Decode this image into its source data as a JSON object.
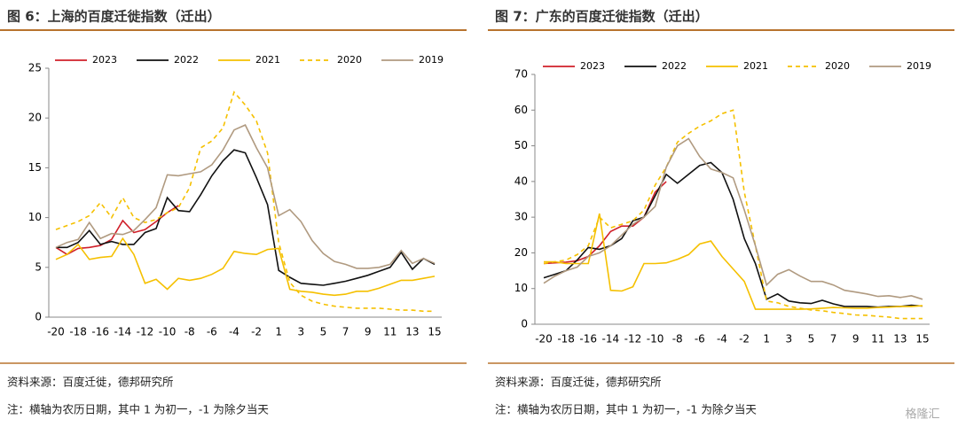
{
  "watermark": "格隆汇",
  "chart_data": [
    {
      "type": "line",
      "title": "图 6：上海的百度迁徙指数（迁出）",
      "source": "资料来源：百度迁徙，德邦研究所",
      "note": "注：横轴为农历日期，其中 1 为初一，-1 为除夕当天",
      "categories": [
        -20,
        null,
        -18,
        null,
        -16,
        null,
        -14,
        null,
        -12,
        null,
        -10,
        null,
        -8,
        null,
        -6,
        null,
        -4,
        null,
        -2,
        null,
        1,
        null,
        3,
        null,
        5,
        null,
        7,
        null,
        9,
        null,
        11,
        null,
        13,
        null,
        15
      ],
      "ylim": [
        0,
        25
      ],
      "yticks": [
        0,
        5,
        10,
        15,
        20,
        25
      ],
      "series": [
        {
          "name": "2023",
          "color": "#d0202a",
          "values": [
            7.0,
            6.3,
            6.9,
            7.0,
            7.2,
            7.8,
            9.7,
            8.5,
            8.8,
            9.6,
            10.5,
            11.2,
            null,
            null,
            null,
            null,
            null,
            null,
            null,
            null,
            null,
            null,
            null,
            null,
            null,
            null,
            null,
            null,
            null,
            null,
            null,
            null,
            null,
            null,
            null
          ]
        },
        {
          "name": "2022",
          "color": "#111111",
          "values": [
            7.0,
            7.0,
            7.5,
            8.7,
            7.3,
            7.6,
            7.3,
            7.3,
            8.5,
            8.9,
            12.0,
            10.7,
            10.6,
            12.3,
            14.2,
            15.7,
            16.8,
            16.5,
            14.0,
            11.3,
            4.7,
            4.0,
            3.4,
            3.3,
            3.2,
            3.4,
            3.6,
            3.9,
            4.2,
            4.6,
            5.0,
            6.5,
            4.8,
            5.9,
            5.3
          ]
        },
        {
          "name": "2021",
          "color": "#f5c000",
          "values": [
            5.8,
            6.3,
            7.3,
            5.8,
            6.0,
            6.1,
            7.9,
            6.3,
            3.4,
            3.8,
            2.8,
            3.9,
            3.7,
            3.9,
            4.3,
            4.9,
            6.6,
            6.4,
            6.3,
            6.8,
            6.9,
            2.8,
            2.6,
            2.5,
            2.3,
            2.2,
            2.3,
            2.6,
            2.6,
            2.9,
            3.3,
            3.7,
            3.7,
            3.9,
            4.1
          ]
        },
        {
          "name": "2020",
          "color": "#f5c000",
          "dashed": true,
          "values": [
            8.8,
            9.2,
            9.6,
            10.2,
            11.5,
            10.0,
            12.0,
            10.0,
            9.5,
            9.8,
            10.5,
            11.0,
            13.0,
            17.0,
            17.7,
            19.0,
            22.6,
            21.3,
            19.7,
            16.5,
            7.5,
            3.5,
            2.2,
            1.6,
            1.3,
            1.1,
            1.0,
            0.9,
            0.9,
            0.9,
            0.8,
            0.7,
            0.7,
            0.6,
            0.6
          ]
        },
        {
          "name": "2019",
          "color": "#b09a80",
          "values": [
            7.0,
            7.5,
            7.8,
            9.5,
            7.9,
            8.4,
            8.3,
            8.7,
            9.8,
            11.0,
            14.3,
            14.2,
            14.4,
            14.6,
            15.3,
            16.8,
            18.8,
            19.3,
            17.0,
            15.0,
            10.2,
            10.8,
            9.6,
            7.7,
            6.4,
            5.6,
            5.3,
            4.9,
            4.9,
            5.0,
            5.3,
            6.7,
            5.4,
            5.9,
            5.4
          ]
        }
      ]
    },
    {
      "type": "line",
      "title": "图 7：广东的百度迁徙指数（迁出）",
      "source": "资料来源：百度迁徙，德邦研究所",
      "note": "注：横轴为农历日期，其中 1 为初一，-1 为除夕当天",
      "categories": [
        -20,
        null,
        -18,
        null,
        -16,
        null,
        -14,
        null,
        -12,
        null,
        -10,
        null,
        -8,
        null,
        -6,
        null,
        -4,
        null,
        -2,
        null,
        1,
        null,
        3,
        null,
        5,
        null,
        7,
        null,
        9,
        null,
        11,
        null,
        13,
        null,
        15
      ],
      "ylim": [
        0,
        70
      ],
      "yticks": [
        0,
        10,
        20,
        30,
        40,
        50,
        60,
        70
      ],
      "series": [
        {
          "name": "2023",
          "color": "#d0202a",
          "values": [
            17.0,
            17.2,
            17.4,
            17.8,
            19.0,
            22.0,
            26.0,
            27.5,
            27.5,
            30.0,
            37.0,
            40.0,
            null,
            null,
            null,
            null,
            null,
            null,
            null,
            null,
            null,
            null,
            null,
            null,
            null,
            null,
            null,
            null,
            null,
            null,
            null,
            null,
            null,
            null,
            null
          ]
        },
        {
          "name": "2022",
          "color": "#111111",
          "values": [
            13,
            14,
            15,
            18,
            21.5,
            21,
            22,
            24,
            29,
            30,
            36,
            42,
            39.5,
            42,
            44.5,
            45.3,
            42.5,
            35,
            24,
            17,
            7,
            8.5,
            6.5,
            6,
            5.8,
            6.7,
            5.7,
            5,
            5,
            5,
            4.8,
            5,
            5,
            5.3,
            5.1
          ]
        },
        {
          "name": "2021",
          "color": "#f5c000",
          "values": [
            17.5,
            17.5,
            17,
            17,
            17,
            31,
            9.5,
            9.3,
            10.5,
            17,
            17,
            17.2,
            18.2,
            19.5,
            22.5,
            23.3,
            19,
            15.5,
            12,
            4.2,
            4.2,
            4.2,
            4.2,
            4.2,
            4.3,
            4.5,
            4.7,
            4.6,
            4.5,
            4.5,
            4.7,
            4.8,
            5,
            5,
            5.2
          ]
        },
        {
          "name": "2020",
          "color": "#f5c000",
          "dashed": true,
          "values": [
            17,
            17.5,
            18,
            19.5,
            22,
            30,
            27,
            28,
            29,
            32,
            39,
            44,
            51,
            53.5,
            55.5,
            57,
            59,
            60,
            37,
            22,
            6.5,
            6,
            5,
            4.5,
            4,
            3.8,
            3.3,
            3,
            2.6,
            2.5,
            2.2,
            2,
            1.6,
            1.6,
            1.6
          ]
        },
        {
          "name": "2019",
          "color": "#b09a80",
          "values": [
            11.5,
            13.5,
            15,
            16,
            19,
            20,
            22,
            25,
            28,
            30,
            33,
            44,
            50,
            52,
            47,
            43.5,
            42.5,
            41,
            32,
            22,
            11,
            14,
            15.3,
            13.5,
            12,
            12,
            11,
            9.5,
            9,
            8.5,
            7.8,
            8,
            7.5,
            8,
            7
          ]
        }
      ]
    }
  ]
}
